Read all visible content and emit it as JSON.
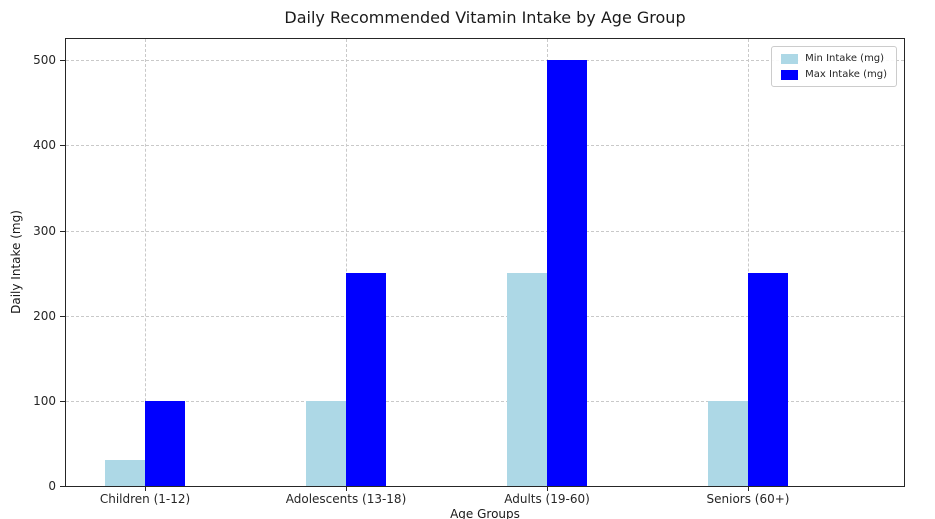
{
  "chart_data": {
    "type": "bar",
    "title": "Daily Recommended Vitamin Intake by Age Group",
    "xlabel": "Age Groups",
    "ylabel": "Daily Intake (mg)",
    "categories": [
      "Children (1-12)",
      "Adolescents (13-18)",
      "Adults (19-60)",
      "Seniors (60+)"
    ],
    "series": [
      {
        "name": "Min Intake (mg)",
        "color": "#ADD8E6",
        "values": [
          30,
          100,
          250,
          100
        ]
      },
      {
        "name": "Max Intake (mg)",
        "color": "#0000FF",
        "values": [
          100,
          250,
          500,
          250
        ]
      }
    ],
    "ylim": [
      0,
      525
    ],
    "yticks": [
      0,
      100,
      200,
      300,
      400,
      500
    ],
    "grid": true,
    "grid_style": "dashed",
    "legend_position": "upper right"
  }
}
